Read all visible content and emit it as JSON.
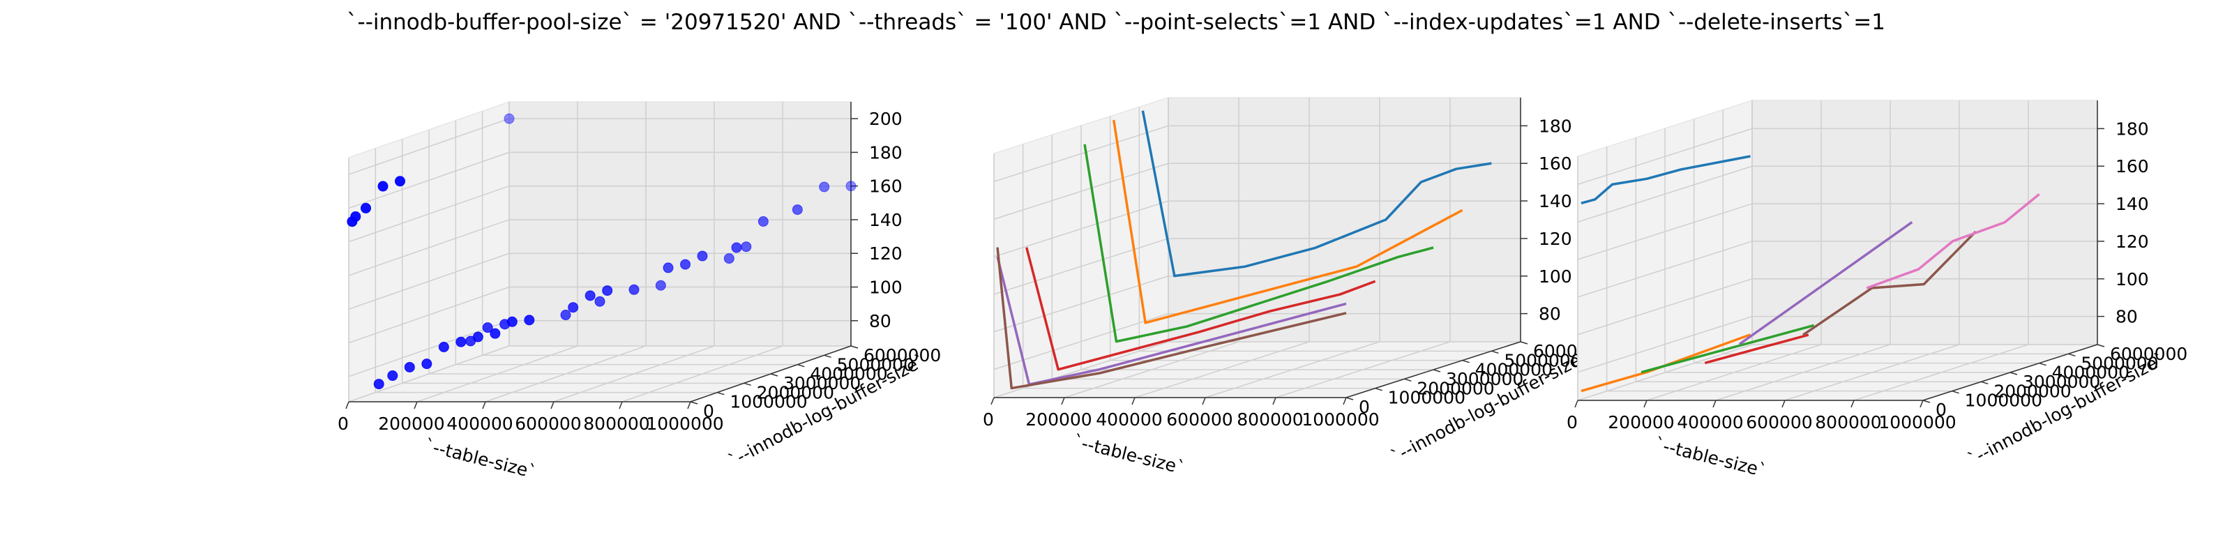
{
  "title": "`--innodb-buffer-pool-size` = '20971520' AND `--threads` = '100'  AND `--point-selects`=1 AND `--index-updates`=1 AND `--delete-inserts`=1",
  "chart_data": [
    {
      "type": "scatter",
      "xlabel": "`--table-size`",
      "ylabel": "`--innodb-log-buffer-size`",
      "zlabel": "",
      "xlim": [
        0,
        1000000
      ],
      "ylim": [
        0,
        6000000
      ],
      "zlim": [
        65,
        210
      ],
      "xticks": [
        0,
        200000,
        400000,
        600000,
        800000,
        1000000
      ],
      "yticks": [
        0,
        1000000,
        2000000,
        3000000,
        4000000,
        5000000,
        6000000
      ],
      "zticks": [
        80,
        100,
        120,
        140,
        160,
        180,
        200
      ],
      "marker_color": "#0000ff",
      "points": [
        {
          "x": 0,
          "y": 6000000,
          "z": 200
        },
        {
          "x": 10000,
          "y": 0,
          "z": 172
        },
        {
          "x": 20000,
          "y": 0,
          "z": 175
        },
        {
          "x": 50000,
          "y": 0,
          "z": 180
        },
        {
          "x": 100000,
          "y": 0,
          "z": 193
        },
        {
          "x": 150000,
          "y": 0,
          "z": 196
        },
        {
          "x": 10000,
          "y": 1000000,
          "z": 70
        },
        {
          "x": 50000,
          "y": 1000000,
          "z": 75
        },
        {
          "x": 100000,
          "y": 1000000,
          "z": 80
        },
        {
          "x": 150000,
          "y": 1000000,
          "z": 82
        },
        {
          "x": 200000,
          "y": 1000000,
          "z": 92
        },
        {
          "x": 250000,
          "y": 1000000,
          "z": 95
        },
        {
          "x": 300000,
          "y": 1000000,
          "z": 98
        },
        {
          "x": 350000,
          "y": 1000000,
          "z": 100
        },
        {
          "x": 400000,
          "y": 1000000,
          "z": 107
        },
        {
          "x": 450000,
          "y": 1000000,
          "z": 108
        },
        {
          "x": 200000,
          "y": 2000000,
          "z": 90
        },
        {
          "x": 250000,
          "y": 2000000,
          "z": 98
        },
        {
          "x": 300000,
          "y": 2000000,
          "z": 100
        },
        {
          "x": 500000,
          "y": 2000000,
          "z": 110
        },
        {
          "x": 550000,
          "y": 2000000,
          "z": 117
        },
        {
          "x": 600000,
          "y": 2000000,
          "z": 120
        },
        {
          "x": 400000,
          "y": 3000000,
          "z": 100
        },
        {
          "x": 500000,
          "y": 3000000,
          "z": 108
        },
        {
          "x": 600000,
          "y": 3000000,
          "z": 115
        },
        {
          "x": 700000,
          "y": 3000000,
          "z": 128
        },
        {
          "x": 750000,
          "y": 3000000,
          "z": 130
        },
        {
          "x": 800000,
          "y": 3000000,
          "z": 135
        },
        {
          "x": 900000,
          "y": 3000000,
          "z": 140
        },
        {
          "x": 600000,
          "y": 4000000,
          "z": 112
        },
        {
          "x": 800000,
          "y": 4000000,
          "z": 128
        },
        {
          "x": 850000,
          "y": 4000000,
          "z": 135
        },
        {
          "x": 900000,
          "y": 4000000,
          "z": 150
        },
        {
          "x": 1000000,
          "y": 4000000,
          "z": 157
        },
        {
          "x": 1000000,
          "y": 5000000,
          "z": 165
        },
        {
          "x": 1000000,
          "y": 6000000,
          "z": 160
        }
      ]
    },
    {
      "type": "line",
      "xlabel": "`--table-size`",
      "ylabel": "`--innodb-log-buffer-size`",
      "zlabel": "",
      "xlim": [
        0,
        1000000
      ],
      "ylim": [
        0,
        6000000
      ],
      "zlim": [
        65,
        195
      ],
      "xticks": [
        0,
        200000,
        400000,
        600000,
        800000,
        1000000
      ],
      "yticks": [
        0,
        1000000,
        2000000,
        3000000,
        4000000,
        5000000,
        6000000
      ],
      "zticks": [
        80,
        100,
        120,
        140,
        160,
        180
      ],
      "series": [
        {
          "color": "#1f77b4",
          "points": [
            {
              "x": 10000,
              "y": 5000000,
              "z": 193
            },
            {
              "x": 100000,
              "y": 5000000,
              "z": 105
            },
            {
              "x": 300000,
              "y": 5000000,
              "z": 110
            },
            {
              "x": 500000,
              "y": 5000000,
              "z": 120
            },
            {
              "x": 700000,
              "y": 5000000,
              "z": 135
            },
            {
              "x": 800000,
              "y": 5000000,
              "z": 155
            },
            {
              "x": 900000,
              "y": 5000000,
              "z": 162
            },
            {
              "x": 1000000,
              "y": 5000000,
              "z": 165
            }
          ]
        },
        {
          "color": "#ff7f0e",
          "points": [
            {
              "x": 10000,
              "y": 4000000,
              "z": 193
            },
            {
              "x": 100000,
              "y": 4000000,
              "z": 85
            },
            {
              "x": 300000,
              "y": 4000000,
              "z": 95
            },
            {
              "x": 500000,
              "y": 4000000,
              "z": 105
            },
            {
              "x": 700000,
              "y": 4000000,
              "z": 115
            },
            {
              "x": 1000000,
              "y": 4000000,
              "z": 145
            }
          ]
        },
        {
          "color": "#2ca02c",
          "points": [
            {
              "x": 10000,
              "y": 3000000,
              "z": 185
            },
            {
              "x": 100000,
              "y": 3000000,
              "z": 80
            },
            {
              "x": 300000,
              "y": 3000000,
              "z": 88
            },
            {
              "x": 500000,
              "y": 3000000,
              "z": 100
            },
            {
              "x": 700000,
              "y": 3000000,
              "z": 112
            },
            {
              "x": 900000,
              "y": 3000000,
              "z": 125
            },
            {
              "x": 1000000,
              "y": 3000000,
              "z": 130
            }
          ]
        },
        {
          "color": "#d62728",
          "points": [
            {
              "x": 10000,
              "y": 1000000,
              "z": 140
            },
            {
              "x": 100000,
              "y": 1000000,
              "z": 75
            },
            {
              "x": 300000,
              "y": 1000000,
              "z": 85
            },
            {
              "x": 500000,
              "y": 1000000,
              "z": 95
            },
            {
              "x": 700000,
              "y": 1000000,
              "z": 106
            },
            {
              "x": 900000,
              "y": 1000000,
              "z": 115
            },
            {
              "x": 1000000,
              "y": 1000000,
              "z": 122
            }
          ]
        },
        {
          "color": "#9467bd",
          "points": [
            {
              "x": 10000,
              "y": 0,
              "z": 140
            },
            {
              "x": 100000,
              "y": 0,
              "z": 72
            },
            {
              "x": 300000,
              "y": 0,
              "z": 80
            },
            {
              "x": 500000,
              "y": 0,
              "z": 90
            },
            {
              "x": 700000,
              "y": 0,
              "z": 100
            },
            {
              "x": 900000,
              "y": 0,
              "z": 110
            },
            {
              "x": 1000000,
              "y": 0,
              "z": 115
            }
          ]
        },
        {
          "color": "#8c564b",
          "points": [
            {
              "x": 10000,
              "y": 0,
              "z": 145
            },
            {
              "x": 50000,
              "y": 0,
              "z": 70
            },
            {
              "x": 300000,
              "y": 0,
              "z": 78
            },
            {
              "x": 600000,
              "y": 0,
              "z": 92
            },
            {
              "x": 1000000,
              "y": 0,
              "z": 110
            }
          ]
        }
      ]
    },
    {
      "type": "line",
      "xlabel": "`--table-size`",
      "ylabel": "`--innodb-log-buffer-size`",
      "zlabel": "",
      "xlim": [
        0,
        1000000
      ],
      "ylim": [
        0,
        6000000
      ],
      "zlim": [
        65,
        195
      ],
      "xticks": [
        0,
        200000,
        400000,
        600000,
        800000,
        1000000
      ],
      "yticks": [
        0,
        1000000,
        2000000,
        3000000,
        4000000,
        5000000,
        6000000
      ],
      "zticks": [
        80,
        100,
        120,
        140,
        160,
        180
      ],
      "series": [
        {
          "color": "#1f77b4",
          "points": [
            {
              "x": 10000,
              "y": 0,
              "z": 170
            },
            {
              "x": 50000,
              "y": 0,
              "z": 172
            },
            {
              "x": 100000,
              "y": 0,
              "z": 180
            },
            {
              "x": 200000,
              "y": 0,
              "z": 183
            },
            {
              "x": 300000,
              "y": 0,
              "z": 188
            },
            {
              "x": 500000,
              "y": 0,
              "z": 195
            }
          ]
        },
        {
          "color": "#ff7f0e",
          "points": [
            {
              "x": 10000,
              "y": 0,
              "z": 70
            },
            {
              "x": 200000,
              "y": 0,
              "z": 80
            },
            {
              "x": 500000,
              "y": 0,
              "z": 100
            }
          ]
        },
        {
          "color": "#2ca02c",
          "points": [
            {
              "x": 100000,
              "y": 1000000,
              "z": 75
            },
            {
              "x": 300000,
              "y": 1000000,
              "z": 85
            },
            {
              "x": 600000,
              "y": 1000000,
              "z": 100
            }
          ]
        },
        {
          "color": "#d62728",
          "points": [
            {
              "x": 200000,
              "y": 2000000,
              "z": 75
            },
            {
              "x": 500000,
              "y": 2000000,
              "z": 90
            }
          ]
        },
        {
          "color": "#9467bd",
          "points": [
            {
              "x": 300000,
              "y": 2000000,
              "z": 85
            },
            {
              "x": 800000,
              "y": 2000000,
              "z": 150
            }
          ]
        },
        {
          "color": "#8c564b",
          "points": [
            {
              "x": 400000,
              "y": 3000000,
              "z": 85
            },
            {
              "x": 600000,
              "y": 3000000,
              "z": 110
            },
            {
              "x": 750000,
              "y": 3000000,
              "z": 112
            },
            {
              "x": 900000,
              "y": 3000000,
              "z": 140
            }
          ]
        },
        {
          "color": "#e377c2",
          "points": [
            {
              "x": 500000,
              "y": 4000000,
              "z": 105
            },
            {
              "x": 650000,
              "y": 4000000,
              "z": 115
            },
            {
              "x": 750000,
              "y": 4000000,
              "z": 130
            },
            {
              "x": 900000,
              "y": 4000000,
              "z": 140
            },
            {
              "x": 1000000,
              "y": 4000000,
              "z": 155
            }
          ]
        }
      ]
    }
  ]
}
